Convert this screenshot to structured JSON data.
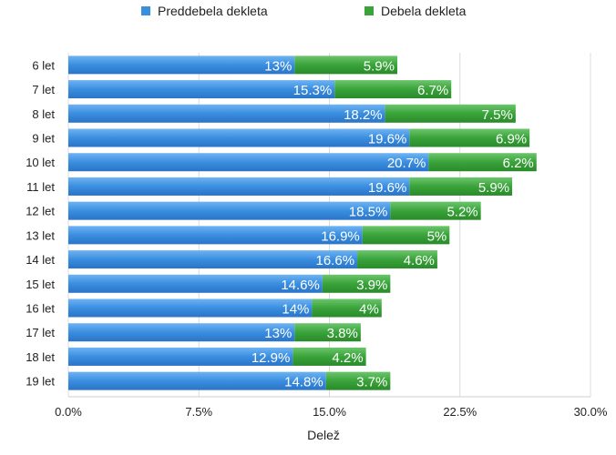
{
  "chart_data": {
    "type": "bar",
    "orientation": "horizontal",
    "stacked": true,
    "categories": [
      "6 let",
      "7 let",
      "8 let",
      "9 let",
      "10 let",
      "11 let",
      "12 let",
      "13 let",
      "14 let",
      "15 let",
      "16 let",
      "17 let",
      "18 let",
      "19 let"
    ],
    "series": [
      {
        "name": "Preddebela dekleta",
        "color": "#3a8ee0",
        "values": [
          13,
          15.3,
          18.2,
          19.6,
          20.7,
          19.6,
          18.5,
          16.9,
          16.6,
          14.6,
          14,
          13,
          12.9,
          14.8
        ],
        "labels": [
          "13%",
          "15.3%",
          "18.2%",
          "19.6%",
          "20.7%",
          "19.6%",
          "18.5%",
          "16.9%",
          "16.6%",
          "14.6%",
          "14%",
          "13%",
          "12.9%",
          "14.8%"
        ]
      },
      {
        "name": "Debela dekleta",
        "color": "#3aa33a",
        "values": [
          5.9,
          6.7,
          7.5,
          6.9,
          6.2,
          5.9,
          5.2,
          5,
          4.6,
          3.9,
          4,
          3.8,
          4.2,
          3.7
        ],
        "labels": [
          "5.9%",
          "6.7%",
          "7.5%",
          "6.9%",
          "6.2%",
          "5.9%",
          "5.2%",
          "5%",
          "4.6%",
          "3.9%",
          "4%",
          "3.8%",
          "4.2%",
          "3.7%"
        ]
      }
    ],
    "xlim": [
      0,
      30
    ],
    "x_ticks": [
      0,
      7.5,
      15,
      22.5,
      30
    ],
    "x_tick_labels": [
      "0.0%",
      "7.5%",
      "15.0%",
      "22.5%",
      "30.0%"
    ],
    "xlabel": "Delež",
    "grid": true,
    "legend_position": "top"
  }
}
